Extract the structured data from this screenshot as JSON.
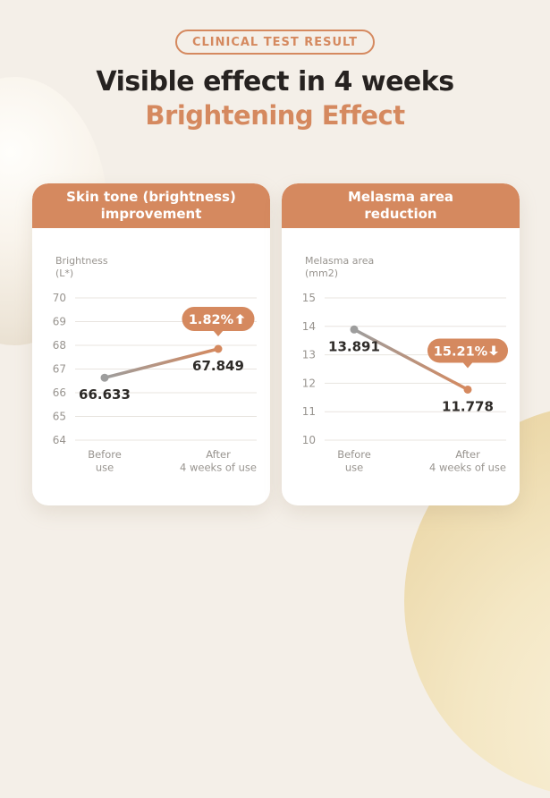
{
  "page": {
    "badge": "CLINICAL TEST RESULT",
    "title": "Visible effect in 4 weeks",
    "subtitle": "Brightening Effect"
  },
  "colors": {
    "page_bg": "#f4efe8",
    "card_bg": "#ffffff",
    "accent": "#d5895f",
    "dark": "#262220",
    "value_text": "#2e2b28",
    "axis_text": "#98948f",
    "grid": "#e8e4df",
    "line_gray": "#9d9d9d",
    "badge_text": "#ffffff"
  },
  "chart_data": [
    {
      "type": "line",
      "title_line1": "Skin tone (brightness)",
      "title_line2": "improvement",
      "ylabel_line1": "Brightness",
      "ylabel_line2": "(L*)",
      "x_categories": [
        [
          "Before",
          "use"
        ],
        [
          "After",
          "4 weeks of use"
        ]
      ],
      "values": [
        66.633,
        67.849
      ],
      "value_labels": [
        "66.633",
        "67.849"
      ],
      "ylim": [
        64,
        70
      ],
      "yticks": [
        64,
        65,
        66,
        67,
        68,
        69,
        70
      ],
      "grid": true,
      "legend": false,
      "badge_label": "1.82%",
      "badge_direction": "up",
      "badge_gap": 20
    },
    {
      "type": "line",
      "title_line1": "Melasma area",
      "title_line2": "reduction",
      "ylabel_line1": "Melasma area",
      "ylabel_line2": "(mm2)",
      "x_categories": [
        [
          "Before",
          "use"
        ],
        [
          "After",
          "4 weeks of use"
        ]
      ],
      "values": [
        13.891,
        11.778
      ],
      "value_labels": [
        "13.891",
        "11.778"
      ],
      "ylim": [
        10,
        15
      ],
      "yticks": [
        10,
        11,
        12,
        13,
        14,
        15
      ],
      "grid": true,
      "legend": false,
      "badge_label": "15.21%",
      "badge_direction": "down",
      "badge_gap": 30
    }
  ]
}
